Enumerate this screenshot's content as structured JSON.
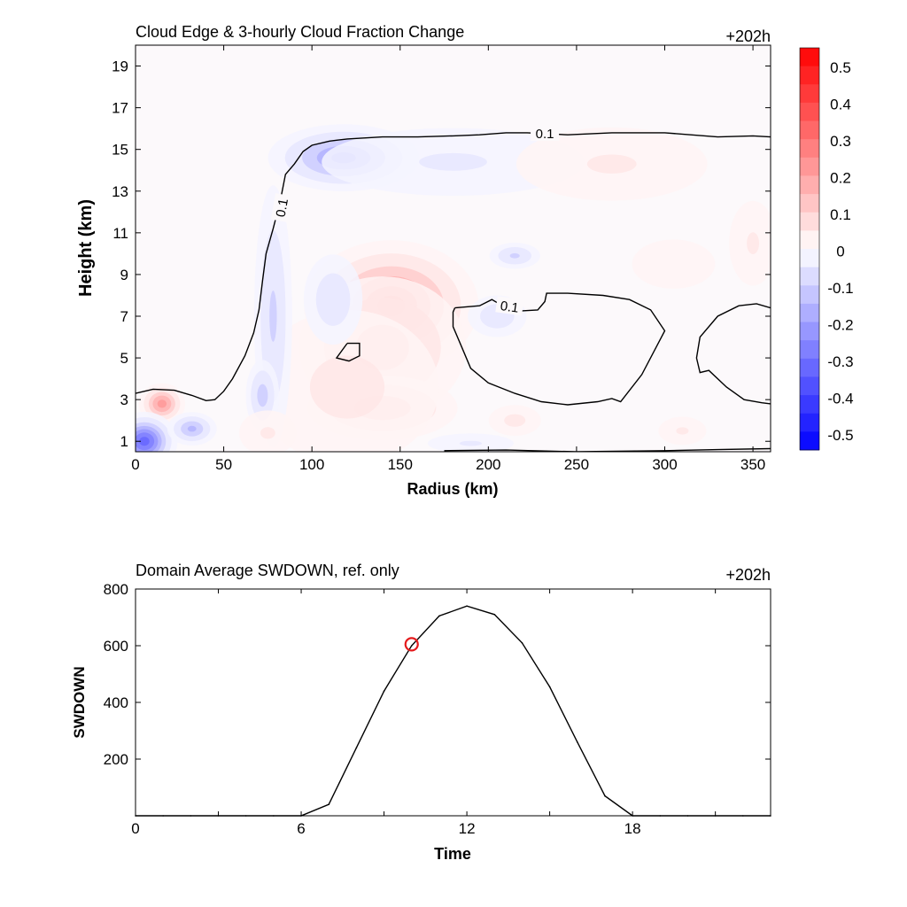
{
  "chart_data": [
    {
      "type": "heatmap",
      "title": "Cloud Edge & 3-hourly Cloud Fraction Change",
      "time_label": "+202h",
      "xlabel": "Radius (km)",
      "ylabel": "Height (km)",
      "xlim": [
        0,
        360
      ],
      "ylim": [
        0.5,
        20
      ],
      "xticks": [
        0,
        50,
        100,
        150,
        200,
        250,
        300,
        350
      ],
      "yticks": [
        1,
        3,
        5,
        7,
        9,
        11,
        13,
        15,
        17,
        19
      ],
      "colorbar": {
        "levels": [
          0.5,
          0.4,
          0.3,
          0.2,
          0.1,
          0,
          -0.1,
          -0.2,
          -0.3,
          -0.4,
          -0.5
        ],
        "labels": [
          "0.5",
          "0.4",
          "0.3",
          "0.2",
          "0.1",
          "0",
          "-0.1",
          "-0.2",
          "-0.3",
          "-0.4",
          "-0.5"
        ],
        "colormap": "blue-white-red",
        "min_color": "#0000ff",
        "mid_color": "#ffffff",
        "max_color": "#ff0000"
      },
      "contour_level_label": "0.1",
      "anomalies": [
        {
          "r": 145,
          "z": 7.5,
          "value": 0.25,
          "sr": 22,
          "sz": 1.4
        },
        {
          "r": 140,
          "z": 5.5,
          "value": 0.12,
          "sr": 25,
          "sz": 1.8
        },
        {
          "r": 140,
          "z": 2.6,
          "value": 0.13,
          "sr": 22,
          "sz": 0.8
        },
        {
          "r": 120,
          "z": 3.6,
          "value": 0.06,
          "sr": 35,
          "sz": 2.5
        },
        {
          "r": 15,
          "z": 2.8,
          "value": 0.22,
          "sr": 6,
          "sz": 0.45
        },
        {
          "r": 5,
          "z": 1.0,
          "value": -0.32,
          "sr": 8,
          "sz": 0.6
        },
        {
          "r": 32,
          "z": 1.6,
          "value": -0.15,
          "sr": 7,
          "sz": 0.4
        },
        {
          "r": 78,
          "z": 7.0,
          "value": -0.1,
          "sr": 6,
          "sz": 3.5
        },
        {
          "r": 72,
          "z": 3.2,
          "value": -0.12,
          "sr": 5,
          "sz": 0.9
        },
        {
          "r": 118,
          "z": 14.6,
          "value": -0.2,
          "sr": 20,
          "sz": 0.75
        },
        {
          "r": 180,
          "z": 14.4,
          "value": -0.05,
          "sr": 55,
          "sz": 1.2
        },
        {
          "r": 112,
          "z": 7.8,
          "value": -0.08,
          "sr": 10,
          "sz": 1.3
        },
        {
          "r": 215,
          "z": 9.9,
          "value": -0.1,
          "sr": 8,
          "sz": 0.35
        },
        {
          "r": 205,
          "z": 7.0,
          "value": -0.08,
          "sr": 10,
          "sz": 0.6
        },
        {
          "r": 270,
          "z": 14.3,
          "value": 0.05,
          "sr": 40,
          "sz": 1.3
        },
        {
          "r": 190,
          "z": 0.9,
          "value": -0.05,
          "sr": 18,
          "sz": 0.35
        },
        {
          "r": 215,
          "z": 2.0,
          "value": 0.06,
          "sr": 10,
          "sz": 0.5
        },
        {
          "r": 75,
          "z": 1.4,
          "value": 0.05,
          "sr": 12,
          "sz": 0.8
        },
        {
          "r": 305,
          "z": 9.5,
          "value": 0.04,
          "sr": 20,
          "sz": 1.0
        },
        {
          "r": 350,
          "z": 10.5,
          "value": 0.05,
          "sr": 10,
          "sz": 1.5
        },
        {
          "r": 310,
          "z": 1.5,
          "value": 0.05,
          "sr": 10,
          "sz": 0.5
        }
      ],
      "contours": [
        {
          "label": "0.1",
          "label_at": {
            "r": 83,
            "z": 12.2,
            "text_rotate": -80
          },
          "points": [
            [
              0,
              3.3
            ],
            [
              10,
              3.5
            ],
            [
              22,
              3.45
            ],
            [
              32,
              3.2
            ],
            [
              40,
              2.95
            ],
            [
              45,
              3.0
            ],
            [
              50,
              3.4
            ],
            [
              55,
              4.0
            ],
            [
              62,
              5.1
            ],
            [
              67,
              6.2
            ],
            [
              70,
              7.3
            ],
            [
              72,
              8.7
            ],
            [
              74,
              10.0
            ],
            [
              78,
              11.2
            ],
            [
              82,
              12.5
            ],
            [
              85,
              13.8
            ],
            [
              90,
              14.3
            ],
            [
              95,
              14.9
            ],
            [
              100,
              15.2
            ],
            [
              110,
              15.4
            ],
            [
              120,
              15.5
            ],
            [
              140,
              15.6
            ],
            [
              160,
              15.6
            ],
            [
              180,
              15.65
            ],
            [
              195,
              15.7
            ],
            [
              210,
              15.8
            ],
            [
              222,
              15.8
            ],
            [
              245,
              15.7
            ],
            [
              270,
              15.8
            ],
            [
              300,
              15.8
            ],
            [
              330,
              15.6
            ],
            [
              350,
              15.65
            ],
            [
              360,
              15.6
            ]
          ]
        },
        {
          "label": "0.1",
          "label_at": {
            "r": 212,
            "z": 7.45,
            "text_rotate": 8
          },
          "points": [
            [
              181,
              7.4
            ],
            [
              195,
              7.5
            ],
            [
              202,
              7.8
            ],
            [
              208,
              7.5
            ],
            [
              218,
              7.25
            ],
            [
              228,
              7.3
            ],
            [
              232,
              7.7
            ],
            [
              233,
              8.1
            ],
            [
              245,
              8.1
            ],
            [
              265,
              8.0
            ],
            [
              280,
              7.8
            ],
            [
              292,
              7.3
            ],
            [
              300,
              6.3
            ],
            [
              287,
              4.2
            ],
            [
              275,
              2.9
            ],
            [
              270,
              3.05
            ],
            [
              262,
              2.9
            ],
            [
              245,
              2.75
            ],
            [
              230,
              2.9
            ],
            [
              215,
              3.3
            ],
            [
              200,
              3.8
            ],
            [
              190,
              4.5
            ],
            [
              185,
              5.5
            ],
            [
              180,
              6.5
            ],
            [
              180,
              7.2
            ],
            [
              181,
              7.4
            ]
          ]
        },
        {
          "label": "",
          "points": [
            [
              120,
              5.7
            ],
            [
              127,
              5.7
            ],
            [
              127,
              5.1
            ],
            [
              121,
              4.85
            ],
            [
              114,
              5.0
            ],
            [
              120,
              5.7
            ]
          ]
        },
        {
          "label": "",
          "points": [
            [
              360,
              7.4
            ],
            [
              352,
              7.6
            ],
            [
              342,
              7.5
            ],
            [
              330,
              7.0
            ],
            [
              320,
              6.0
            ],
            [
              318,
              5.0
            ],
            [
              320,
              4.3
            ],
            [
              325,
              4.4
            ],
            [
              335,
              3.6
            ],
            [
              345,
              3.0
            ],
            [
              355,
              2.85
            ],
            [
              360,
              2.8
            ]
          ]
        },
        {
          "label": "",
          "points": [
            [
              175,
              0.55
            ],
            [
              210,
              0.58
            ],
            [
              250,
              0.5
            ],
            [
              300,
              0.55
            ],
            [
              330,
              0.6
            ],
            [
              360,
              0.65
            ]
          ]
        }
      ]
    },
    {
      "type": "line",
      "title": "Domain Average SWDOWN, ref. only",
      "time_label": "+202h",
      "xlabel": "Time",
      "ylabel": "SWDOWN",
      "xlim": [
        0,
        23
      ],
      "ylim": [
        0,
        800
      ],
      "xticks": [
        0,
        6,
        12,
        18
      ],
      "yticks": [
        200,
        400,
        600,
        800
      ],
      "x": [
        0,
        1,
        2,
        3,
        4,
        5,
        6,
        7,
        8,
        9,
        10,
        11,
        12,
        13,
        14,
        15,
        16,
        17,
        18,
        19,
        20,
        21,
        22,
        23
      ],
      "y": [
        0,
        0,
        0,
        0,
        0,
        0,
        0,
        40,
        240,
        440,
        600,
        705,
        740,
        710,
        610,
        455,
        260,
        70,
        0,
        0,
        0,
        0,
        0,
        0
      ],
      "marker": {
        "x": 10,
        "y": 605,
        "color": "#e41a1c"
      }
    }
  ]
}
